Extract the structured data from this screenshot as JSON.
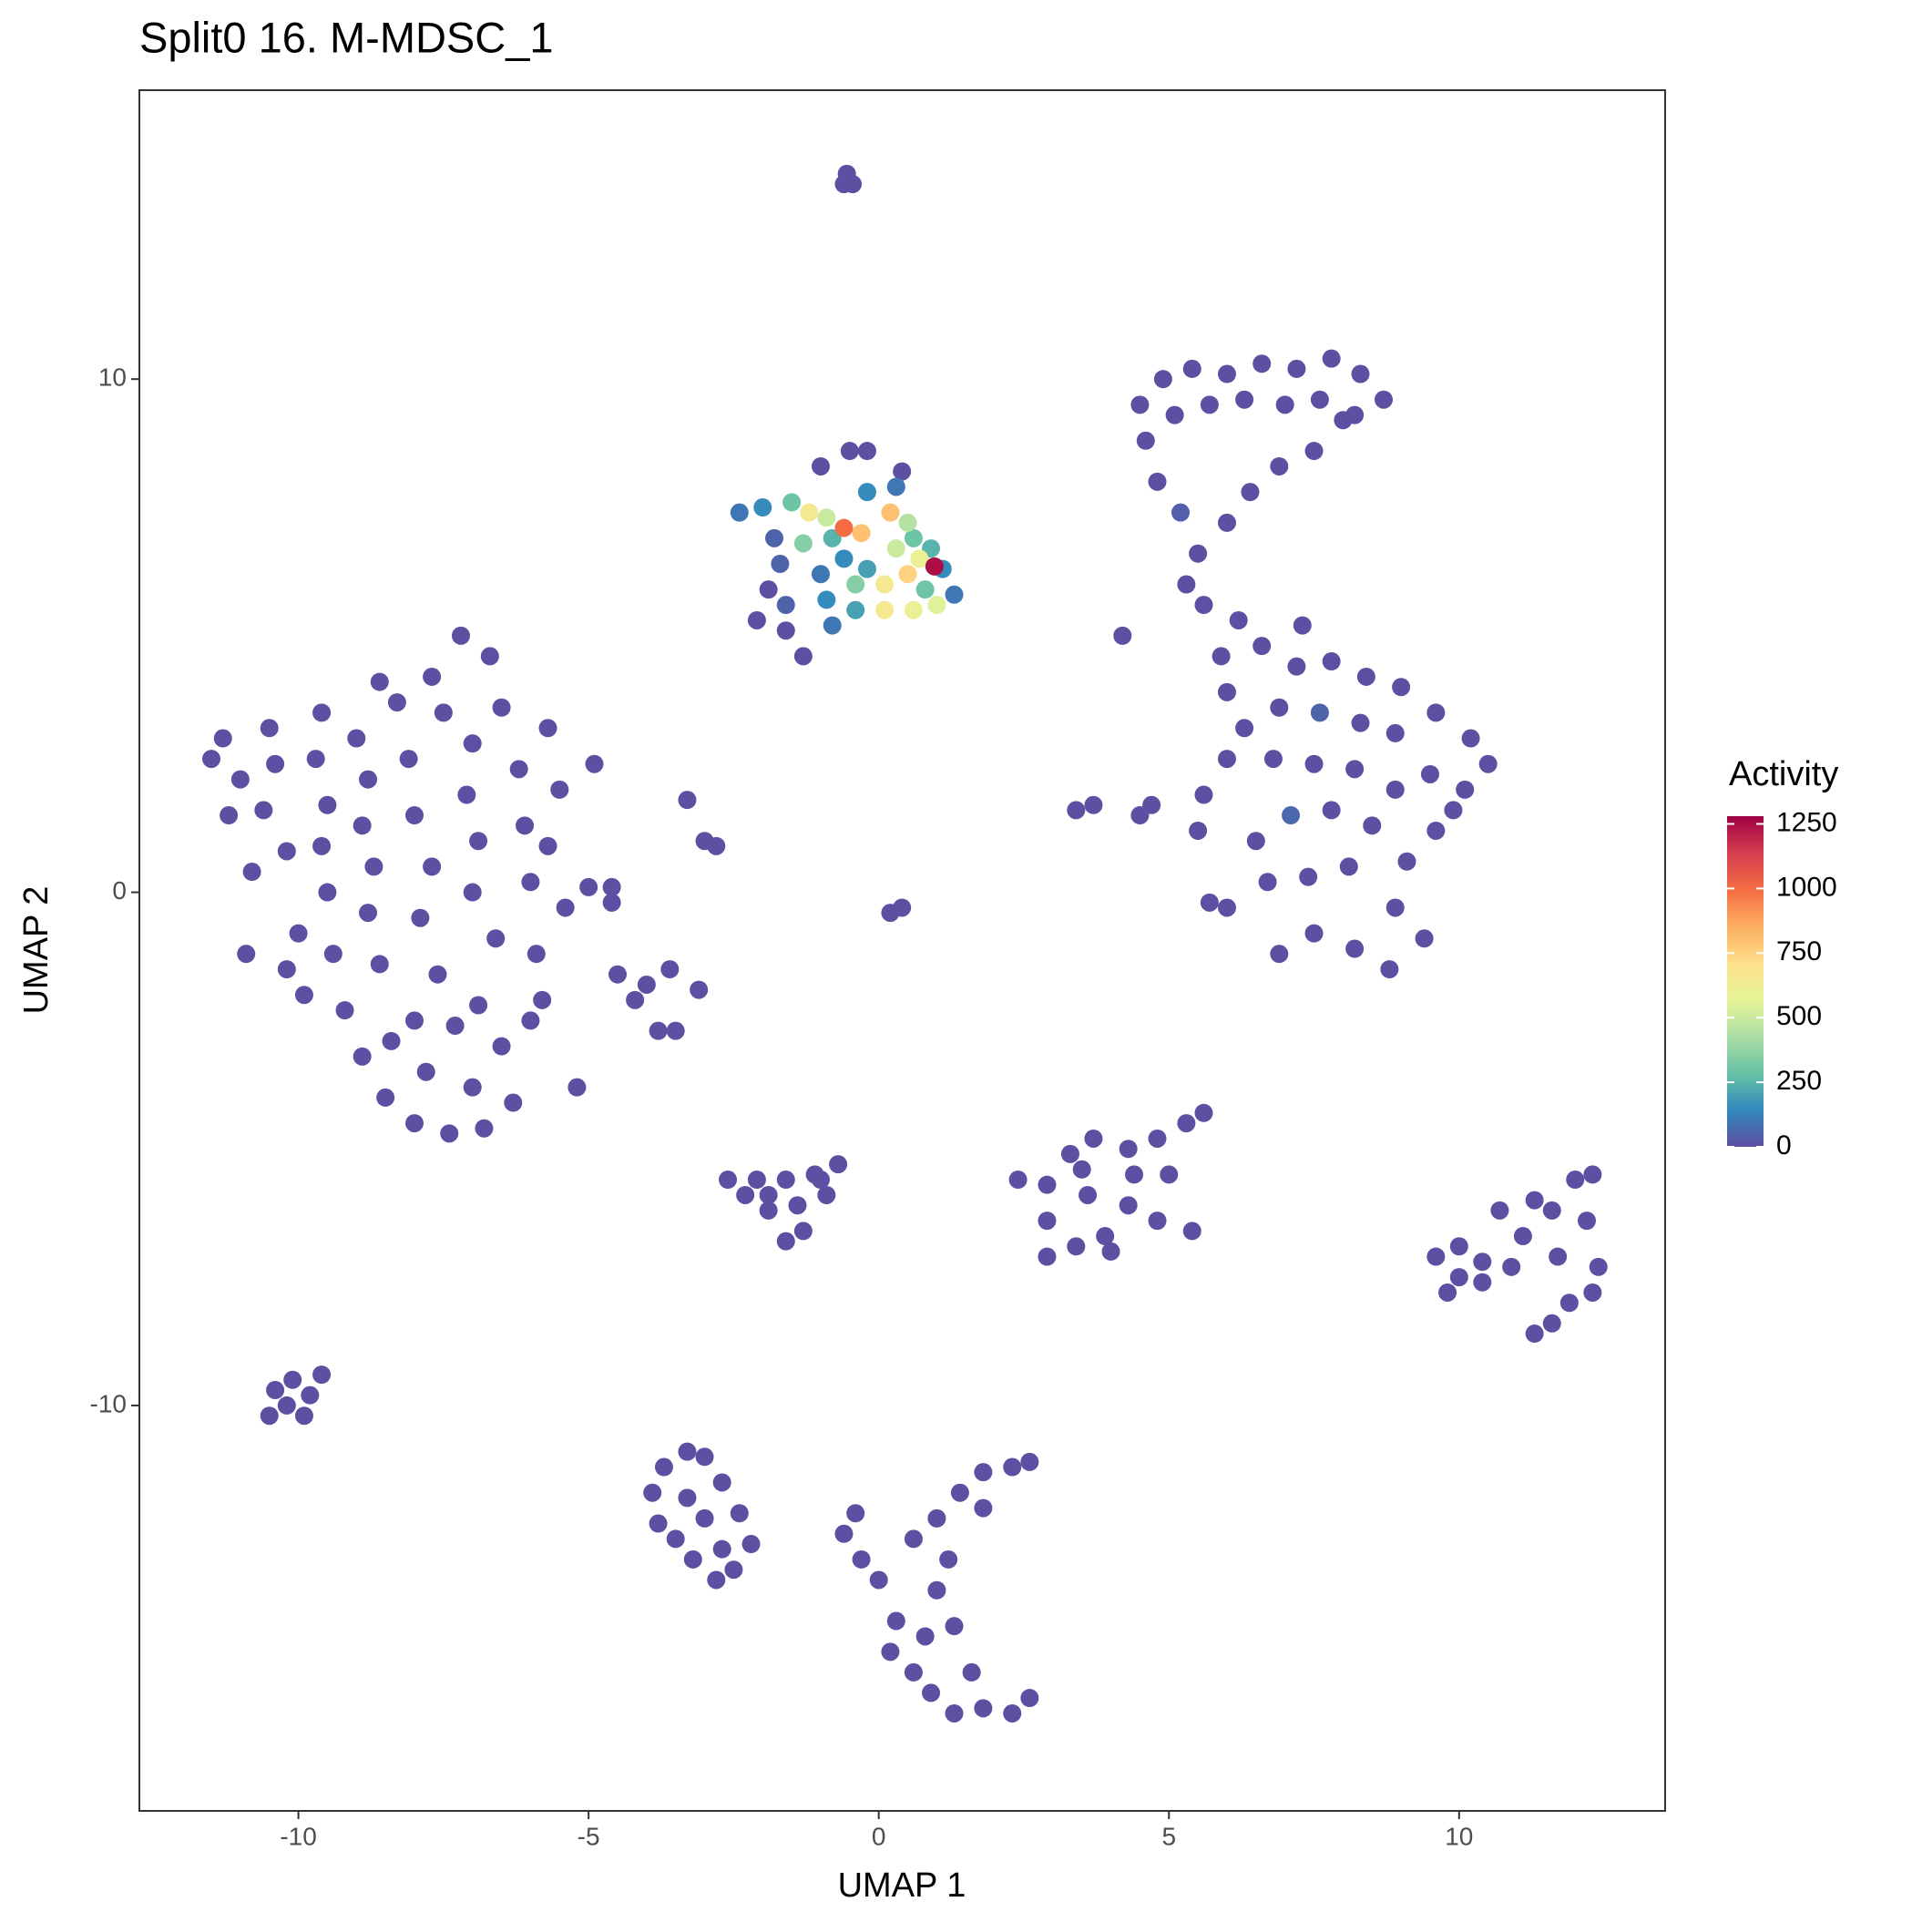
{
  "chart_data": {
    "type": "scatter",
    "title": "Split0 16. M-MDSC_1",
    "x_label": "UMAP 1",
    "y_label": "UMAP 2",
    "xlim": [
      -12.74,
      13.55
    ],
    "ylim": [
      -17.9,
      15.63
    ],
    "xticks": [
      -10,
      -5,
      0,
      5,
      10
    ],
    "yticks": [
      -10,
      0,
      10
    ],
    "grid": false,
    "colorbar": {
      "title": "Activity",
      "lim": [
        0,
        1280
      ],
      "ticks": [
        0,
        250,
        500,
        750,
        1000,
        1250
      ],
      "colorscale": [
        "#5E4FA2",
        "#3288BD",
        "#66C2A5",
        "#ABDDA4",
        "#E6F598",
        "#FEE08B",
        "#FDAE61",
        "#F46D43",
        "#D53E4F",
        "#9E0142"
      ]
    },
    "points": [
      [
        -11.3,
        3.0,
        0
      ],
      [
        -11.0,
        2.2,
        0
      ],
      [
        -11.2,
        1.5,
        0
      ],
      [
        -10.5,
        3.2,
        0
      ],
      [
        -10.4,
        2.5,
        0
      ],
      [
        -10.6,
        1.6,
        0
      ],
      [
        -10.2,
        0.8,
        0
      ],
      [
        -10.8,
        0.4,
        0
      ],
      [
        -9.6,
        3.5,
        0
      ],
      [
        -9.7,
        2.6,
        0
      ],
      [
        -9.5,
        1.7,
        0
      ],
      [
        -9.6,
        0.9,
        0
      ],
      [
        -9.5,
        0.0,
        0
      ],
      [
        -10.0,
        -0.8,
        0
      ],
      [
        -10.2,
        -1.5,
        0
      ],
      [
        -9.4,
        -1.2,
        0
      ],
      [
        -9.0,
        3.0,
        0
      ],
      [
        -8.8,
        2.2,
        0
      ],
      [
        -8.9,
        1.3,
        0
      ],
      [
        -8.7,
        0.5,
        0
      ],
      [
        -8.8,
        -0.4,
        0
      ],
      [
        -8.6,
        -1.4,
        0
      ],
      [
        -9.2,
        -2.3,
        0
      ],
      [
        -8.9,
        -3.2,
        0
      ],
      [
        -8.5,
        -4.0,
        0
      ],
      [
        -8.0,
        -4.5,
        0
      ],
      [
        -7.4,
        -4.7,
        0
      ],
      [
        -6.8,
        -4.6,
        0
      ],
      [
        -7.0,
        -3.8,
        0
      ],
      [
        -7.8,
        -3.5,
        0
      ],
      [
        -8.0,
        -2.5,
        0
      ],
      [
        -7.6,
        -1.6,
        0
      ],
      [
        -7.9,
        -0.5,
        0
      ],
      [
        -7.7,
        0.5,
        0
      ],
      [
        -8.0,
        1.5,
        0
      ],
      [
        -8.1,
        2.6,
        0
      ],
      [
        -8.3,
        3.7,
        0
      ],
      [
        -7.7,
        4.2,
        0
      ],
      [
        -7.2,
        5.0,
        0
      ],
      [
        -6.7,
        4.6,
        0
      ],
      [
        -6.5,
        3.6,
        0
      ],
      [
        -7.0,
        2.9,
        0
      ],
      [
        -7.1,
        1.9,
        0
      ],
      [
        -6.9,
        1.0,
        0
      ],
      [
        -7.0,
        0.0,
        0
      ],
      [
        -6.6,
        -0.9,
        0
      ],
      [
        -6.9,
        -2.2,
        0
      ],
      [
        -6.5,
        -3.0,
        0
      ],
      [
        -6.3,
        -4.1,
        0
      ],
      [
        -6.0,
        -2.5,
        0
      ],
      [
        -5.9,
        -1.2,
        0
      ],
      [
        -6.0,
        0.2,
        0
      ],
      [
        -6.1,
        1.3,
        0
      ],
      [
        -6.2,
        2.4,
        0
      ],
      [
        -5.7,
        3.2,
        0
      ],
      [
        -5.5,
        2.0,
        0
      ],
      [
        -5.7,
        0.9,
        0
      ],
      [
        -5.4,
        -0.3,
        0
      ],
      [
        -5.8,
        -2.1,
        0
      ],
      [
        -5.2,
        -3.8,
        0
      ],
      [
        -4.6,
        0.1,
        0
      ],
      [
        -4.9,
        2.5,
        0
      ],
      [
        -11.5,
        2.6,
        0
      ],
      [
        -10.9,
        -1.2,
        0
      ],
      [
        -9.9,
        -2.0,
        0
      ],
      [
        -8.4,
        -2.9,
        0
      ],
      [
        -7.3,
        -2.6,
        0
      ],
      [
        -7.5,
        3.5,
        0
      ],
      [
        -8.6,
        4.1,
        0
      ],
      [
        -0.55,
        14.0,
        0
      ],
      [
        -0.45,
        13.8,
        0
      ],
      [
        -0.6,
        13.8,
        0
      ],
      [
        4.5,
        9.5,
        0
      ],
      [
        4.9,
        10.0,
        0
      ],
      [
        5.4,
        10.2,
        0
      ],
      [
        6.0,
        10.1,
        0
      ],
      [
        6.6,
        10.3,
        0
      ],
      [
        7.2,
        10.2,
        0
      ],
      [
        7.8,
        10.4,
        0
      ],
      [
        8.3,
        10.1,
        0
      ],
      [
        8.7,
        9.6,
        0
      ],
      [
        8.2,
        9.3,
        0
      ],
      [
        7.6,
        9.6,
        0
      ],
      [
        7.0,
        9.5,
        0
      ],
      [
        6.3,
        9.6,
        0
      ],
      [
        5.7,
        9.5,
        0
      ],
      [
        5.1,
        9.3,
        0
      ],
      [
        4.6,
        8.8,
        0
      ],
      [
        4.8,
        8.0,
        0
      ],
      [
        5.2,
        7.4,
        40
      ],
      [
        5.5,
        6.6,
        0
      ],
      [
        5.3,
        6.0,
        0
      ],
      [
        6.0,
        7.2,
        0
      ],
      [
        6.4,
        7.8,
        0
      ],
      [
        6.9,
        8.3,
        0
      ],
      [
        7.5,
        8.6,
        0
      ],
      [
        8.0,
        9.2,
        0
      ],
      [
        5.6,
        5.6,
        0
      ],
      [
        6.2,
        5.3,
        0
      ],
      [
        6.6,
        4.8,
        0
      ],
      [
        7.2,
        4.4,
        0
      ],
      [
        7.8,
        4.5,
        0
      ],
      [
        8.4,
        4.2,
        0
      ],
      [
        9.0,
        4.0,
        0
      ],
      [
        9.6,
        3.5,
        0
      ],
      [
        10.2,
        3.0,
        0
      ],
      [
        10.5,
        2.5,
        0
      ],
      [
        10.1,
        2.0,
        0
      ],
      [
        9.5,
        2.3,
        0
      ],
      [
        8.9,
        3.1,
        0
      ],
      [
        8.3,
        3.3,
        0
      ],
      [
        7.6,
        3.5,
        50
      ],
      [
        6.9,
        3.6,
        0
      ],
      [
        6.3,
        3.2,
        0
      ],
      [
        6.0,
        2.6,
        0
      ],
      [
        6.8,
        2.6,
        0
      ],
      [
        7.5,
        2.5,
        0
      ],
      [
        8.2,
        2.4,
        0
      ],
      [
        8.9,
        2.0,
        0
      ],
      [
        9.6,
        1.2,
        0
      ],
      [
        9.1,
        0.6,
        0
      ],
      [
        8.5,
        1.3,
        0
      ],
      [
        7.8,
        1.6,
        0
      ],
      [
        7.1,
        1.5,
        60
      ],
      [
        6.5,
        1.0,
        0
      ],
      [
        6.7,
        0.2,
        0
      ],
      [
        7.4,
        0.3,
        0
      ],
      [
        8.1,
        0.5,
        0
      ],
      [
        8.9,
        -0.3,
        0
      ],
      [
        9.4,
        -0.9,
        0
      ],
      [
        8.8,
        -1.5,
        0
      ],
      [
        8.2,
        -1.1,
        0
      ],
      [
        7.5,
        -0.8,
        0
      ],
      [
        6.9,
        -1.2,
        0
      ],
      [
        6.0,
        -0.3,
        0
      ],
      [
        5.9,
        4.6,
        0
      ],
      [
        6.0,
        3.9,
        0
      ],
      [
        5.6,
        1.9,
        0
      ],
      [
        4.7,
        1.7,
        0
      ],
      [
        4.5,
        1.5,
        0
      ],
      [
        5.5,
        1.2,
        0
      ],
      [
        5.7,
        -0.2,
        0
      ],
      [
        9.9,
        1.6,
        0
      ],
      [
        7.3,
        5.2,
        0
      ],
      [
        4.2,
        5.0,
        0
      ],
      [
        3.7,
        1.7,
        0
      ],
      [
        3.4,
        1.6,
        0
      ],
      [
        -2.6,
        -5.6,
        0
      ],
      [
        -2.1,
        -5.6,
        0
      ],
      [
        -1.6,
        -5.6,
        0
      ],
      [
        -1.1,
        -5.5,
        0
      ],
      [
        -0.7,
        -5.3,
        0
      ],
      [
        -0.9,
        -5.9,
        0
      ],
      [
        -1.4,
        -6.1,
        0
      ],
      [
        -1.9,
        -5.9,
        0
      ],
      [
        -1.3,
        -6.6,
        0
      ],
      [
        -1.6,
        -6.8,
        0
      ],
      [
        -1.9,
        -6.2,
        0
      ],
      [
        -2.3,
        -5.9,
        0
      ],
      [
        -1.0,
        -5.6,
        0
      ],
      [
        2.4,
        -5.6,
        0
      ],
      [
        2.9,
        -5.7,
        0
      ],
      [
        3.3,
        -5.1,
        0
      ],
      [
        3.7,
        -4.8,
        0
      ],
      [
        4.3,
        -5.0,
        0
      ],
      [
        4.8,
        -4.8,
        0
      ],
      [
        5.3,
        -4.5,
        0
      ],
      [
        5.6,
        -4.3,
        0
      ],
      [
        5.0,
        -5.5,
        0
      ],
      [
        5.4,
        -6.6,
        0
      ],
      [
        4.8,
        -6.4,
        0
      ],
      [
        4.3,
        -6.1,
        0
      ],
      [
        3.9,
        -6.7,
        0
      ],
      [
        3.4,
        -6.9,
        0
      ],
      [
        2.9,
        -7.1,
        0
      ],
      [
        2.9,
        -6.4,
        0
      ],
      [
        3.6,
        -5.9,
        0
      ],
      [
        4.4,
        -5.5,
        0
      ],
      [
        3.5,
        -5.4,
        0
      ],
      [
        4.0,
        -7.0,
        0
      ],
      [
        9.6,
        -7.1,
        0
      ],
      [
        10.0,
        -6.9,
        0
      ],
      [
        10.4,
        -7.2,
        0
      ],
      [
        10.0,
        -7.5,
        0
      ],
      [
        9.8,
        -7.8,
        0
      ],
      [
        10.4,
        -7.6,
        0
      ],
      [
        10.9,
        -7.3,
        0
      ],
      [
        11.1,
        -6.7,
        0
      ],
      [
        11.6,
        -6.2,
        0
      ],
      [
        12.0,
        -5.6,
        0
      ],
      [
        12.3,
        -5.5,
        0
      ],
      [
        12.2,
        -6.4,
        0
      ],
      [
        12.4,
        -7.3,
        0
      ],
      [
        12.3,
        -7.8,
        0
      ],
      [
        11.9,
        -8.0,
        0
      ],
      [
        11.6,
        -8.4,
        0
      ],
      [
        11.3,
        -8.6,
        0
      ],
      [
        11.7,
        -7.1,
        0
      ],
      [
        11.3,
        -6.0,
        0
      ],
      [
        10.7,
        -6.2,
        0
      ],
      [
        -10.4,
        -9.7,
        0
      ],
      [
        -10.1,
        -9.5,
        0
      ],
      [
        -9.8,
        -9.8,
        0
      ],
      [
        -10.2,
        -10.0,
        0
      ],
      [
        -10.5,
        -10.2,
        0
      ],
      [
        -9.9,
        -10.2,
        0
      ],
      [
        -9.6,
        -9.4,
        0
      ],
      [
        -3.9,
        -11.7,
        0
      ],
      [
        -3.7,
        -11.2,
        0
      ],
      [
        -3.3,
        -10.9,
        0
      ],
      [
        -3.0,
        -11.0,
        0
      ],
      [
        -2.7,
        -11.5,
        0
      ],
      [
        -2.4,
        -12.1,
        0
      ],
      [
        -2.2,
        -12.7,
        0
      ],
      [
        -2.5,
        -13.2,
        0
      ],
      [
        -2.8,
        -13.4,
        0
      ],
      [
        -3.2,
        -13.0,
        0
      ],
      [
        -3.5,
        -12.6,
        0
      ],
      [
        -3.8,
        -12.3,
        0
      ],
      [
        -3.0,
        -12.2,
        0
      ],
      [
        -3.3,
        -11.8,
        0
      ],
      [
        -2.7,
        -12.8,
        0
      ],
      [
        -0.4,
        -12.1,
        0
      ],
      [
        -0.6,
        -12.5,
        0
      ],
      [
        -0.3,
        -13.0,
        0
      ],
      [
        0.0,
        -13.4,
        0
      ],
      [
        0.6,
        -12.6,
        0
      ],
      [
        1.0,
        -12.2,
        0
      ],
      [
        1.4,
        -11.7,
        0
      ],
      [
        1.8,
        -11.3,
        0
      ],
      [
        2.3,
        -11.2,
        0
      ],
      [
        2.6,
        -11.1,
        0
      ],
      [
        1.8,
        -12.0,
        0
      ],
      [
        1.2,
        -13.0,
        0
      ],
      [
        0.3,
        -14.2,
        0
      ],
      [
        0.2,
        -14.8,
        0
      ],
      [
        0.6,
        -15.2,
        0
      ],
      [
        0.9,
        -15.6,
        0
      ],
      [
        1.3,
        -16.0,
        0
      ],
      [
        1.8,
        -15.9,
        0
      ],
      [
        2.3,
        -16.0,
        0
      ],
      [
        2.6,
        -15.7,
        0
      ],
      [
        1.6,
        -15.2,
        0
      ],
      [
        0.8,
        -14.5,
        0
      ],
      [
        1.3,
        -14.3,
        0
      ],
      [
        1.0,
        -13.6,
        0
      ],
      [
        -3.3,
        1.8,
        0
      ],
      [
        -3.0,
        1.0,
        0
      ],
      [
        -2.8,
        0.9,
        0
      ],
      [
        0.2,
        -0.4,
        0
      ],
      [
        0.4,
        -0.3,
        0
      ],
      [
        -4.5,
        -1.6,
        0
      ],
      [
        -4.0,
        -1.8,
        0
      ],
      [
        -4.2,
        -2.1,
        0
      ],
      [
        -3.6,
        -1.5,
        0
      ],
      [
        -3.5,
        -2.7,
        0
      ],
      [
        -3.8,
        -2.7,
        0
      ],
      [
        -3.1,
        -1.9,
        0
      ],
      [
        -5.0,
        0.1,
        0
      ],
      [
        -4.6,
        -0.2,
        0
      ],
      [
        -1.9,
        5.9,
        0
      ],
      [
        -2.1,
        5.3,
        0
      ],
      [
        -1.6,
        5.1,
        0
      ],
      [
        -1.3,
        4.6,
        0
      ],
      [
        0.4,
        8.2,
        0
      ],
      [
        -0.5,
        8.6,
        0
      ],
      [
        -1.0,
        8.3,
        0
      ],
      [
        -0.2,
        8.6,
        0
      ],
      [
        -1.7,
        6.4,
        50
      ],
      [
        -1.6,
        5.6,
        50
      ],
      [
        -1.8,
        6.9,
        50
      ],
      [
        -2.4,
        7.4,
        100
      ],
      [
        -1.0,
        6.2,
        100
      ],
      [
        -0.8,
        5.2,
        100
      ],
      [
        0.3,
        7.9,
        100
      ],
      [
        1.3,
        5.8,
        100
      ],
      [
        -2.0,
        7.5,
        150
      ],
      [
        -0.2,
        7.8,
        150
      ],
      [
        1.1,
        6.3,
        150
      ],
      [
        -0.6,
        6.5,
        150
      ],
      [
        -0.9,
        5.7,
        150
      ],
      [
        -0.2,
        6.3,
        200
      ],
      [
        -0.4,
        5.5,
        200
      ],
      [
        0.9,
        6.7,
        250
      ],
      [
        -0.8,
        6.9,
        250
      ],
      [
        -1.5,
        7.6,
        300
      ],
      [
        0.6,
        6.9,
        300
      ],
      [
        0.8,
        5.9,
        300
      ],
      [
        -1.3,
        6.8,
        350
      ],
      [
        -0.4,
        6.0,
        350
      ],
      [
        0.5,
        7.2,
        450
      ],
      [
        -0.9,
        7.3,
        500
      ],
      [
        0.3,
        6.7,
        500
      ],
      [
        1.0,
        5.6,
        550
      ],
      [
        0.7,
        6.5,
        600
      ],
      [
        0.6,
        5.5,
        600
      ],
      [
        -1.2,
        7.4,
        650
      ],
      [
        0.1,
        6.0,
        650
      ],
      [
        0.1,
        5.5,
        650
      ],
      [
        0.5,
        6.2,
        750
      ],
      [
        -0.3,
        7.0,
        800
      ],
      [
        0.2,
        7.4,
        800
      ],
      [
        -0.6,
        7.1,
        1000
      ],
      [
        0.96,
        6.35,
        1250
      ]
    ]
  }
}
